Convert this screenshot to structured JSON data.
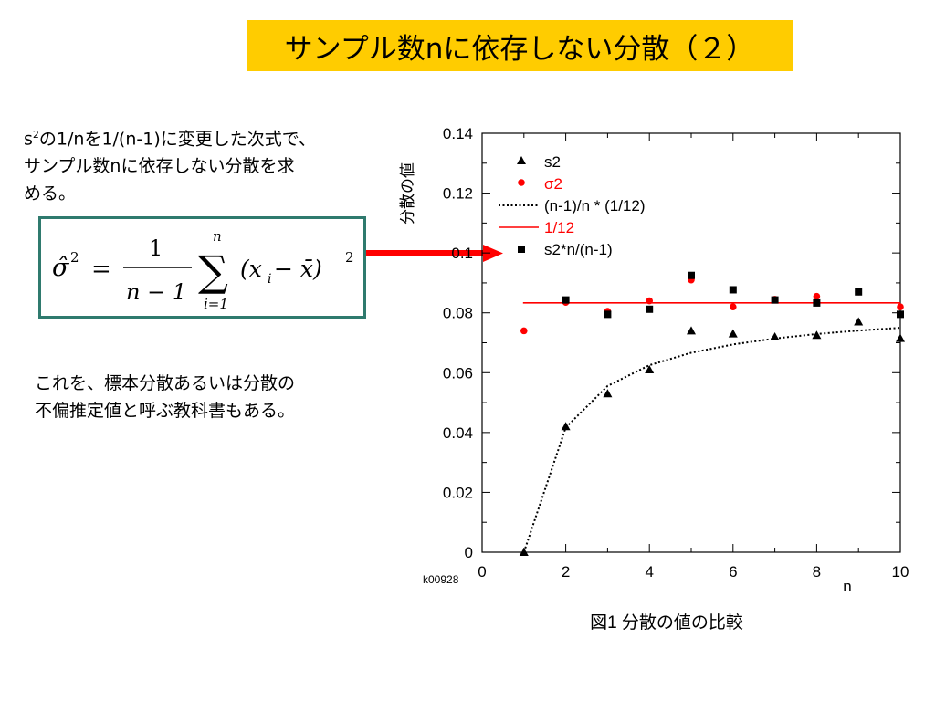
{
  "slide": {
    "title": "サンプル数nに依存しない分散（２）",
    "desc_line1_pre": "s",
    "desc_line1_sup": "2",
    "desc_line1_post": "の1/nを1/(n-1)に変更した次式で、",
    "desc_line2": "サンプル数nに依存しない分散を求",
    "desc_line3": "める。",
    "note_line1": "これを、標本分散あるいは分散の",
    "note_line2": "不偏推定値と呼ぶ教科書もある。",
    "formula": {
      "lhs": "σ̂",
      "lhs_exp": "2",
      "eq": "=",
      "num": "1",
      "den": "n − 1",
      "sum": "∑",
      "upper": "n",
      "lower": "i=1",
      "body_open": "(x",
      "body_sub": "i",
      "body_minus": " − x̄)",
      "body_exp": "2"
    },
    "arrow_color": "#ff0000"
  },
  "chart_data": {
    "type": "scatter",
    "xlabel": "n",
    "ylabel": "分散の値",
    "xlim": [
      0,
      10
    ],
    "ylim": [
      0,
      0.14
    ],
    "xticks": [
      0,
      2,
      4,
      6,
      8,
      10
    ],
    "yticks": [
      0,
      0.02,
      0.04,
      0.06,
      0.08,
      0.1,
      0.12,
      0.14
    ],
    "ytick_labels": [
      "0",
      "0.02",
      "0.04",
      "0.06",
      "0.08",
      "0.1",
      "0.12",
      "0.14"
    ],
    "corner_label": "k00928",
    "caption": "図1 分散の値の比較",
    "legend_position": "top-left",
    "series": [
      {
        "name": "s2",
        "marker": "triangle",
        "color": "#000000",
        "x": [
          1,
          2,
          3,
          4,
          5,
          6,
          7,
          8,
          9,
          10
        ],
        "y": [
          0.0,
          0.042,
          0.053,
          0.061,
          0.074,
          0.073,
          0.072,
          0.0725,
          0.077,
          0.0715
        ]
      },
      {
        "name": "σ2",
        "marker": "circle",
        "color": "#ff0000",
        "x": [
          1,
          2,
          3,
          4,
          5,
          6,
          7,
          8,
          9,
          10
        ],
        "y": [
          0.074,
          0.0835,
          0.0805,
          0.084,
          0.091,
          0.082,
          0.0845,
          0.0855,
          0.087,
          0.082
        ]
      },
      {
        "name": "(n-1)/n * (1/12)",
        "marker": "dotted-line",
        "color": "#000000",
        "x": [
          1,
          2,
          3,
          4,
          5,
          6,
          7,
          8,
          9,
          10
        ],
        "y": [
          0.0,
          0.04167,
          0.05556,
          0.0625,
          0.06667,
          0.06944,
          0.07143,
          0.07292,
          0.07407,
          0.075
        ]
      },
      {
        "name": "1/12",
        "marker": "line",
        "color": "#ff0000",
        "x": [
          1,
          10
        ],
        "y": [
          0.08333,
          0.08333
        ]
      },
      {
        "name": "s2*n/(n-1)",
        "marker": "square",
        "color": "#000000",
        "x": [
          2,
          3,
          4,
          5,
          6,
          7,
          8,
          9,
          10
        ],
        "y": [
          0.0843,
          0.0795,
          0.0812,
          0.0925,
          0.0877,
          0.0843,
          0.0833,
          0.087,
          0.0795
        ]
      }
    ]
  }
}
